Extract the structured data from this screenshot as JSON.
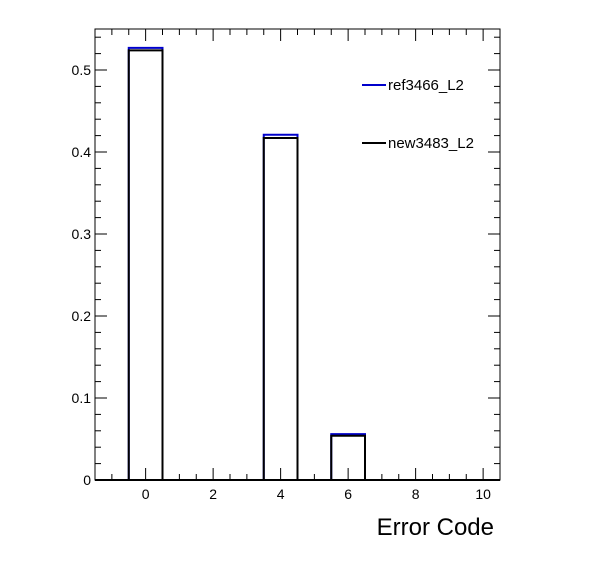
{
  "chart_data": {
    "type": "bar",
    "title": "",
    "xlabel": "Error Code",
    "ylabel": "",
    "xlim": [
      -1.5,
      10.5
    ],
    "ylim": [
      0,
      0.55
    ],
    "x_ticks": [
      0,
      2,
      4,
      6,
      8,
      10
    ],
    "y_ticks": [
      0,
      0.1,
      0.2,
      0.3,
      0.4,
      0.5
    ],
    "x_tick_labels": [
      "0",
      "2",
      "4",
      "6",
      "8",
      "10"
    ],
    "y_tick_labels": [
      "0",
      "0.1",
      "0.2",
      "0.3",
      "0.4",
      "0.5"
    ],
    "bin_width": 1,
    "categories": [
      0,
      4,
      6
    ],
    "series": [
      {
        "name": "ref3466_L2",
        "color": "#0000cc",
        "values": [
          0.527,
          0.421,
          0.056
        ]
      },
      {
        "name": "new3483_L2",
        "color": "#000000",
        "values": [
          0.524,
          0.417,
          0.054
        ]
      }
    ],
    "legend_position": "top-right",
    "grid": false
  }
}
